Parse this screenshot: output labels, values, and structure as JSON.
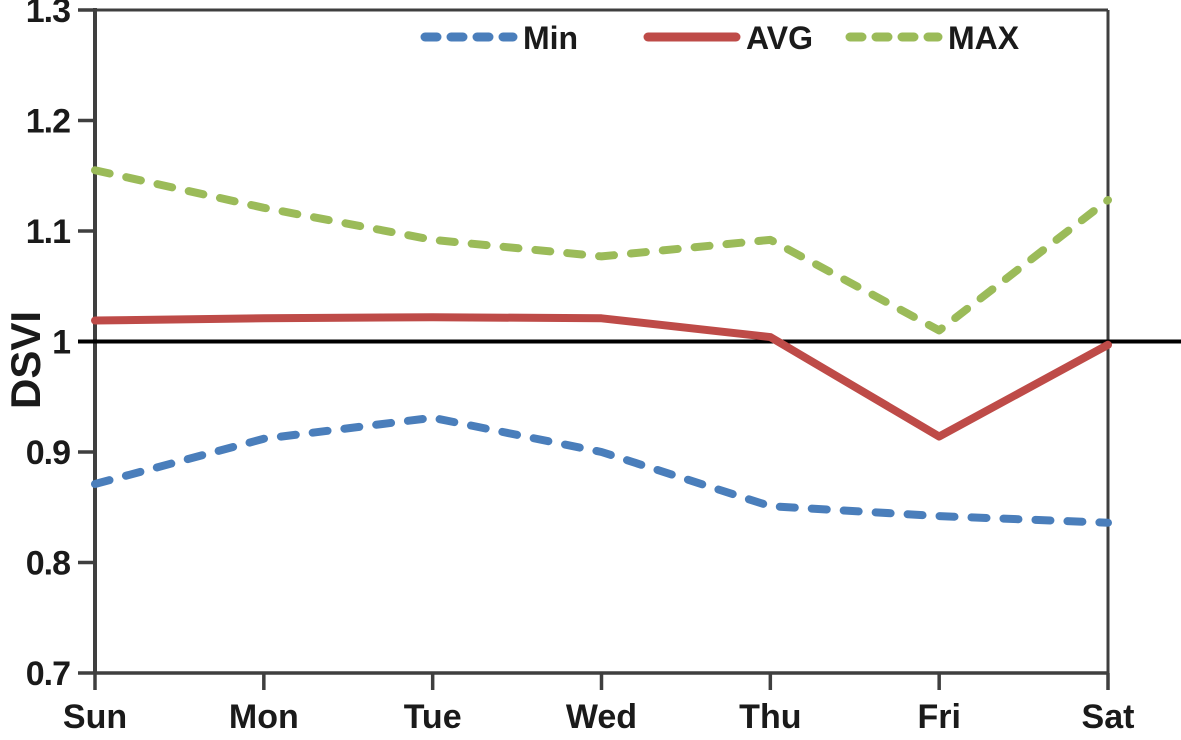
{
  "chart_data": {
    "type": "line",
    "title": "",
    "xlabel": "",
    "ylabel": "DSVI",
    "categories": [
      "Sun",
      "Mon",
      "Tue",
      "Wed",
      "Thu",
      "Fri",
      "Sat"
    ],
    "series": [
      {
        "name": "Min",
        "style": "dashed",
        "color": "#4A7EBB",
        "values": [
          0.871,
          0.912,
          0.931,
          0.9,
          0.851,
          0.842,
          0.836
        ]
      },
      {
        "name": "AVG",
        "style": "solid",
        "color": "#BE4B48",
        "values": [
          1.019,
          1.021,
          1.022,
          1.021,
          1.004,
          0.914,
          0.997
        ]
      },
      {
        "name": "MAX",
        "style": "dashed",
        "color": "#9BBB59",
        "values": [
          1.155,
          1.121,
          1.092,
          1.077,
          1.092,
          1.01,
          1.128
        ]
      }
    ],
    "ylim": [
      0.7,
      1.3
    ],
    "ytick_values": [
      1.3,
      1.2,
      1.1,
      1.0,
      0.9,
      0.8,
      0.7
    ],
    "ytick_labels": [
      "1.3",
      "1.2",
      "1.1",
      "1",
      "0.9",
      "0.8",
      "0.7"
    ],
    "reference_line": {
      "value": 1.0,
      "color": "#000000"
    },
    "grid": false,
    "legend": {
      "position": "top-center",
      "entries": [
        {
          "label": "Min",
          "color": "#4A7EBB",
          "style": "dashed"
        },
        {
          "label": "AVG",
          "color": "#BE4B48",
          "style": "solid"
        },
        {
          "label": "MAX",
          "color": "#9BBB59",
          "style": "dashed"
        }
      ]
    }
  },
  "colors": {
    "axis": "#3F3F3F",
    "text": "#1A1A1A",
    "reference_line": "#000000",
    "background": "#FFFFFF"
  }
}
